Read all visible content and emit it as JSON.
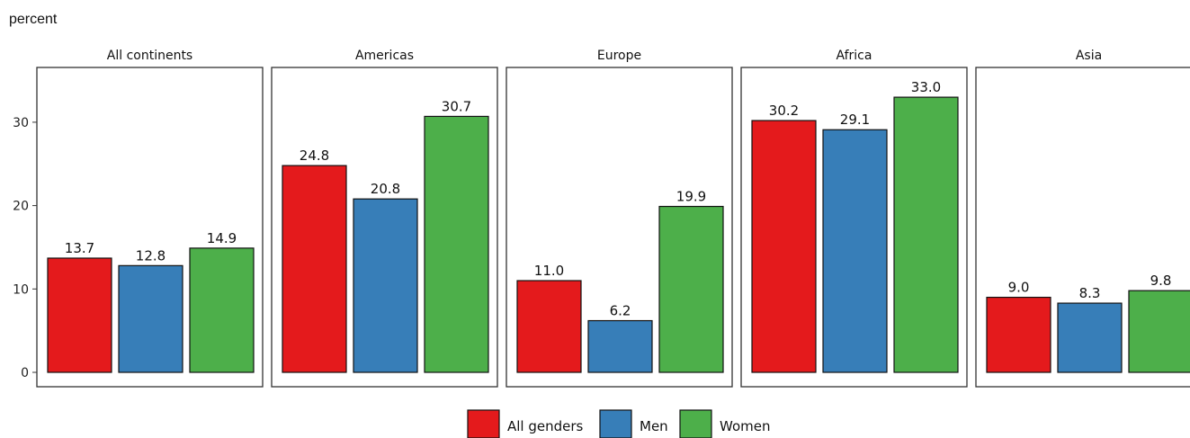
{
  "chart_data": {
    "type": "bar",
    "ylabel": "percent",
    "ylim": [
      0,
      36
    ],
    "yticks": [
      0,
      10,
      20,
      30
    ],
    "grid": false,
    "legend_position": "bottom",
    "series": [
      {
        "name": "All genders",
        "color": "#e41a1c"
      },
      {
        "name": "Men",
        "color": "#377eb8"
      },
      {
        "name": "Women",
        "color": "#4daf4a"
      }
    ],
    "facets": [
      {
        "title": "All continents",
        "values": [
          13.7,
          12.8,
          14.9
        ],
        "labels": [
          "13.7",
          "12.8",
          "14.9"
        ]
      },
      {
        "title": "Americas",
        "values": [
          24.8,
          20.8,
          30.7
        ],
        "labels": [
          "24.8",
          "20.8",
          "30.7"
        ]
      },
      {
        "title": "Europe",
        "values": [
          11.0,
          6.2,
          19.9
        ],
        "labels": [
          "11.0",
          "6.2",
          "19.9"
        ]
      },
      {
        "title": "Africa",
        "values": [
          30.2,
          29.1,
          33.0
        ],
        "labels": [
          "30.2",
          "29.1",
          "33.0"
        ]
      },
      {
        "title": "Asia",
        "values": [
          9.0,
          8.3,
          9.8
        ],
        "labels": [
          "9.0",
          "8.3",
          "9.8"
        ]
      }
    ]
  }
}
